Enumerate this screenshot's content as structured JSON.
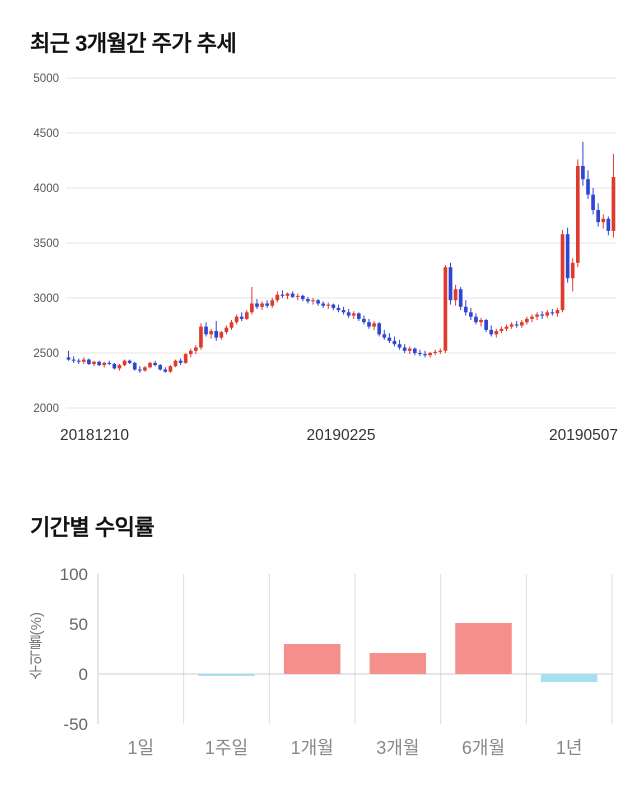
{
  "chart_data": [
    {
      "type": "candlestick",
      "title": "최근 3개월간 주가 추세",
      "ylim": [
        2000,
        5000
      ],
      "yticks": [
        5000,
        4500,
        4000,
        3500,
        3000,
        2500,
        2000
      ],
      "xticks": [
        "20181210",
        "20190225",
        "20190507"
      ],
      "grid": true,
      "up_color": "#de3b2e",
      "down_color": "#2e46d0",
      "grid_color": "#e5e5e5",
      "candles": [
        [
          2460,
          2520,
          2430,
          2440
        ],
        [
          2440,
          2470,
          2410,
          2430
        ],
        [
          2430,
          2450,
          2400,
          2420
        ],
        [
          2420,
          2460,
          2400,
          2440
        ],
        [
          2440,
          2450,
          2390,
          2400
        ],
        [
          2400,
          2430,
          2380,
          2420
        ],
        [
          2420,
          2430,
          2380,
          2390
        ],
        [
          2390,
          2420,
          2370,
          2410
        ],
        [
          2410,
          2430,
          2390,
          2400
        ],
        [
          2400,
          2410,
          2350,
          2360
        ],
        [
          2360,
          2400,
          2340,
          2390
        ],
        [
          2390,
          2440,
          2380,
          2430
        ],
        [
          2430,
          2440,
          2400,
          2410
        ],
        [
          2410,
          2420,
          2340,
          2350
        ],
        [
          2350,
          2380,
          2320,
          2340
        ],
        [
          2340,
          2380,
          2330,
          2370
        ],
        [
          2370,
          2420,
          2360,
          2410
        ],
        [
          2410,
          2430,
          2380,
          2390
        ],
        [
          2390,
          2400,
          2340,
          2350
        ],
        [
          2350,
          2370,
          2320,
          2330
        ],
        [
          2330,
          2390,
          2320,
          2380
        ],
        [
          2380,
          2440,
          2370,
          2430
        ],
        [
          2430,
          2450,
          2390,
          2410
        ],
        [
          2410,
          2500,
          2400,
          2490
        ],
        [
          2490,
          2540,
          2460,
          2520
        ],
        [
          2520,
          2570,
          2490,
          2550
        ],
        [
          2550,
          2770,
          2530,
          2740
        ],
        [
          2740,
          2780,
          2650,
          2670
        ],
        [
          2670,
          2720,
          2630,
          2700
        ],
        [
          2700,
          2790,
          2610,
          2640
        ],
        [
          2640,
          2700,
          2620,
          2690
        ],
        [
          2690,
          2750,
          2670,
          2730
        ],
        [
          2730,
          2800,
          2710,
          2780
        ],
        [
          2780,
          2850,
          2760,
          2830
        ],
        [
          2830,
          2870,
          2790,
          2810
        ],
        [
          2810,
          2890,
          2800,
          2870
        ],
        [
          2870,
          3100,
          2850,
          2950
        ],
        [
          2950,
          2990,
          2900,
          2920
        ],
        [
          2920,
          2970,
          2890,
          2950
        ],
        [
          2950,
          2980,
          2910,
          2930
        ],
        [
          2930,
          3000,
          2910,
          2980
        ],
        [
          2980,
          3060,
          2960,
          3030
        ],
        [
          3030,
          3070,
          3000,
          3020
        ],
        [
          3020,
          3050,
          2990,
          3040
        ],
        [
          3040,
          3060,
          3000,
          3010
        ],
        [
          3010,
          3040,
          2980,
          3020
        ],
        [
          3020,
          3030,
          2970,
          2990
        ],
        [
          2990,
          3010,
          2950,
          2970
        ],
        [
          2970,
          3000,
          2940,
          2980
        ],
        [
          2980,
          2990,
          2930,
          2950
        ],
        [
          2950,
          2970,
          2910,
          2930
        ],
        [
          2930,
          2960,
          2900,
          2940
        ],
        [
          2940,
          2950,
          2890,
          2910
        ],
        [
          2910,
          2940,
          2870,
          2890
        ],
        [
          2890,
          2920,
          2850,
          2870
        ],
        [
          2870,
          2900,
          2820,
          2840
        ],
        [
          2840,
          2880,
          2810,
          2860
        ],
        [
          2860,
          2870,
          2790,
          2810
        ],
        [
          2810,
          2840,
          2760,
          2780
        ],
        [
          2780,
          2810,
          2720,
          2740
        ],
        [
          2740,
          2790,
          2710,
          2770
        ],
        [
          2770,
          2780,
          2650,
          2670
        ],
        [
          2670,
          2710,
          2620,
          2640
        ],
        [
          2640,
          2680,
          2590,
          2610
        ],
        [
          2610,
          2650,
          2560,
          2580
        ],
        [
          2580,
          2620,
          2530,
          2550
        ],
        [
          2550,
          2580,
          2500,
          2520
        ],
        [
          2520,
          2560,
          2490,
          2540
        ],
        [
          2540,
          2550,
          2480,
          2500
        ],
        [
          2500,
          2530,
          2470,
          2490
        ],
        [
          2490,
          2520,
          2460,
          2480
        ],
        [
          2480,
          2510,
          2460,
          2500
        ],
        [
          2500,
          2530,
          2480,
          2510
        ],
        [
          2510,
          2540,
          2490,
          2520
        ],
        [
          2520,
          3300,
          2500,
          3280
        ],
        [
          3280,
          3320,
          2940,
          2980
        ],
        [
          2980,
          3120,
          2930,
          3080
        ],
        [
          3080,
          3100,
          2890,
          2920
        ],
        [
          2920,
          2980,
          2840,
          2870
        ],
        [
          2870,
          2910,
          2800,
          2830
        ],
        [
          2830,
          2860,
          2760,
          2780
        ],
        [
          2780,
          2820,
          2740,
          2800
        ],
        [
          2800,
          2810,
          2690,
          2710
        ],
        [
          2710,
          2750,
          2650,
          2670
        ],
        [
          2670,
          2720,
          2640,
          2700
        ],
        [
          2700,
          2740,
          2680,
          2720
        ],
        [
          2720,
          2760,
          2700,
          2740
        ],
        [
          2740,
          2780,
          2720,
          2760
        ],
        [
          2760,
          2790,
          2730,
          2750
        ],
        [
          2750,
          2800,
          2730,
          2780
        ],
        [
          2780,
          2830,
          2760,
          2810
        ],
        [
          2810,
          2850,
          2780,
          2830
        ],
        [
          2830,
          2870,
          2800,
          2850
        ],
        [
          2850,
          2880,
          2810,
          2840
        ],
        [
          2840,
          2890,
          2820,
          2870
        ],
        [
          2870,
          2900,
          2840,
          2860
        ],
        [
          2860,
          2910,
          2830,
          2890
        ],
        [
          2890,
          3620,
          2870,
          3580
        ],
        [
          3580,
          3640,
          3140,
          3180
        ],
        [
          3180,
          3360,
          3060,
          3320
        ],
        [
          3320,
          4260,
          3280,
          4200
        ],
        [
          4200,
          4420,
          4020,
          4080
        ],
        [
          4080,
          4160,
          3900,
          3940
        ],
        [
          3940,
          4000,
          3760,
          3800
        ],
        [
          3800,
          3860,
          3650,
          3690
        ],
        [
          3690,
          3760,
          3630,
          3720
        ],
        [
          3720,
          3740,
          3570,
          3610
        ],
        [
          3610,
          4310,
          3550,
          4100
        ]
      ]
    },
    {
      "type": "bar",
      "title": "기간별 수익률",
      "ylabel": "수익률(%)",
      "categories": [
        "1일",
        "1주일",
        "1개월",
        "3개월",
        "6개월",
        "1년"
      ],
      "values": [
        0,
        -2,
        30,
        21,
        51,
        -8
      ],
      "ylim": [
        -50,
        100
      ],
      "yticks": [
        100,
        50,
        0,
        -50
      ],
      "grid": true,
      "positive_color": "#f58f8c",
      "negative_color": "#a5e0f2",
      "grid_color": "#dddddd",
      "axis_color": "#cccccc"
    }
  ]
}
